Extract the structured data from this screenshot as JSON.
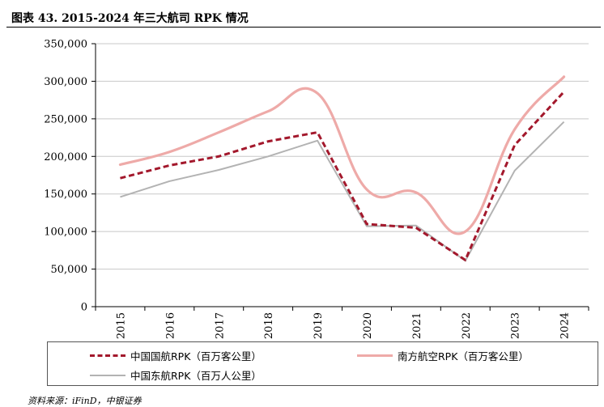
{
  "figure": {
    "title": "图表 43. 2015-2024 年三大航司 RPK 情况",
    "source": "资料来源：iFinD，中银证券"
  },
  "chart_data": {
    "type": "line",
    "categories": [
      "2015",
      "2016",
      "2017",
      "2018",
      "2019",
      "2020",
      "2021",
      "2022",
      "2023",
      "2024"
    ],
    "ylim": [
      0,
      350000
    ],
    "yticks": [
      0,
      50000,
      100000,
      150000,
      200000,
      250000,
      300000,
      350000
    ],
    "ytick_labels": [
      "0",
      "50,000",
      "100,000",
      "150,000",
      "200,000",
      "250,000",
      "300,000",
      "350,000"
    ],
    "grid": true,
    "legend_position": "bottom",
    "series": [
      {
        "name": "中国国航RPK（百万客公里）",
        "values": [
          171000,
          188000,
          200000,
          220000,
          232000,
          110000,
          105000,
          62000,
          215000,
          286000
        ],
        "color": "#a3182c",
        "style": "dashed"
      },
      {
        "name": "南方航空RPK（百万客公里）",
        "values": [
          189000,
          206000,
          232000,
          260000,
          284000,
          156000,
          152000,
          100000,
          236000,
          306000
        ],
        "color": "#eeaaa8",
        "style": "smooth"
      },
      {
        "name": "中国东航RPK（百万人公里）",
        "values": [
          146000,
          167000,
          182000,
          200000,
          221000,
          107000,
          108000,
          61000,
          181000,
          246000
        ],
        "color": "#b3b3b3",
        "style": "solid"
      }
    ]
  }
}
